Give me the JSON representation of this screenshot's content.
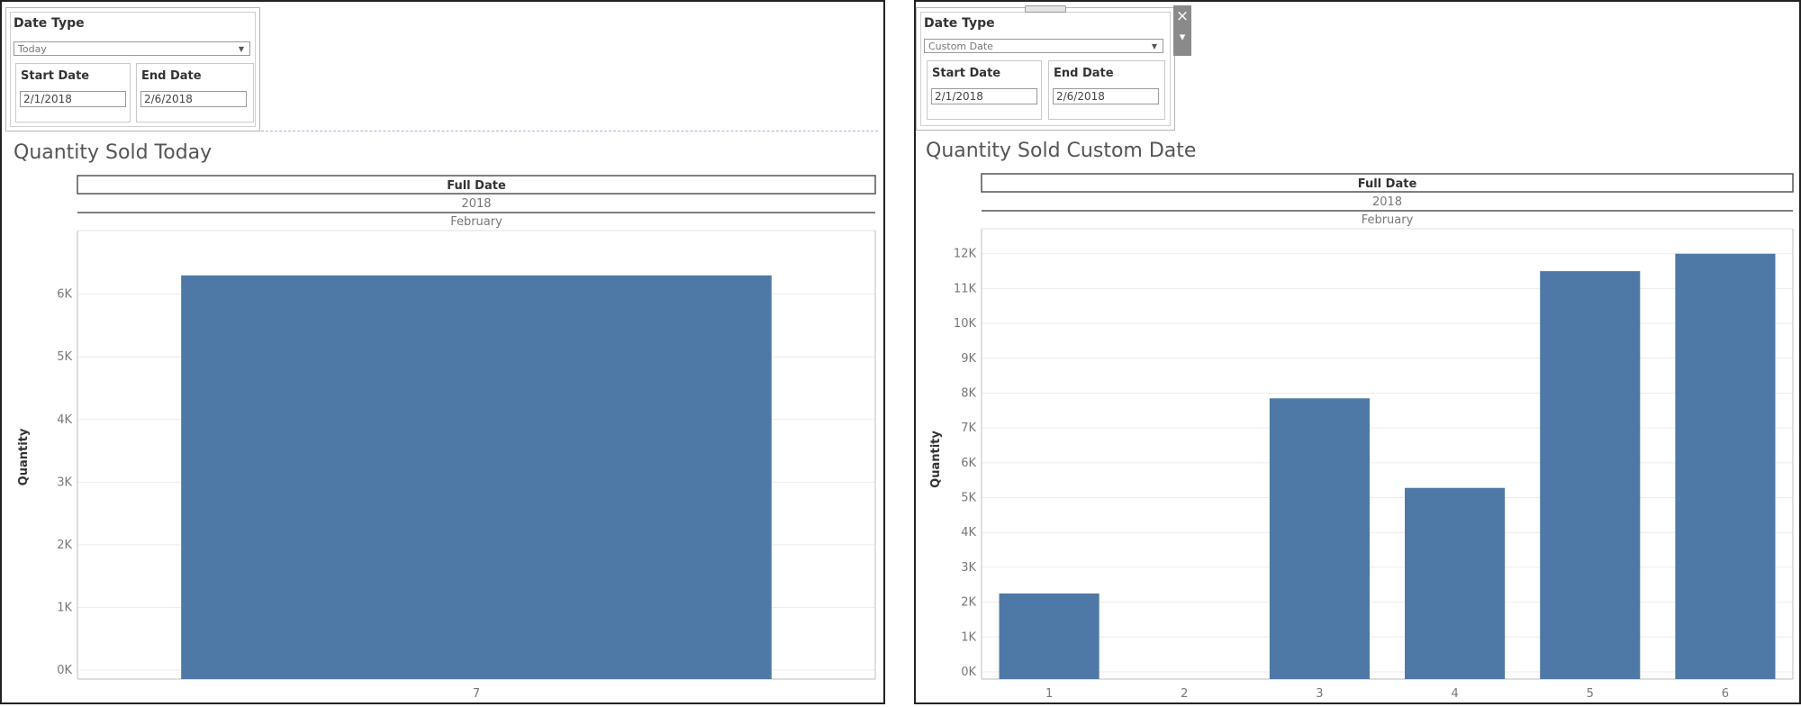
{
  "left": {
    "filter": {
      "title": "Date Type",
      "selected": "Today",
      "start_label": "Start Date",
      "start_value": "2/1/2018",
      "end_label": "End Date",
      "end_value": "2/6/2018"
    },
    "chart_title": "Quantity Sold Today"
  },
  "right": {
    "filter": {
      "title": "Date Type",
      "selected": "Custom Date",
      "start_label": "Start Date",
      "start_value": "2/1/2018",
      "end_label": "End Date",
      "end_value": "2/6/2018"
    },
    "chart_title": "Quantity Sold Custom Date",
    "tools": {
      "close_icon": "×",
      "menu_icon": "▾"
    }
  },
  "colors": {
    "bar": "#4e79a7",
    "grid": "#ececec",
    "axis": "#bdbdbd"
  },
  "chart_data": [
    {
      "type": "bar",
      "title": "Quantity Sold Today",
      "header": [
        "Full Date",
        "2018",
        "February"
      ],
      "categories": [
        "7"
      ],
      "values": [
        6300
      ],
      "ylabel": "Quantity",
      "ylim": [
        0,
        6800
      ],
      "yticks": [
        0,
        1000,
        2000,
        3000,
        4000,
        5000,
        6000
      ],
      "ytick_labels": [
        "0K",
        "1K",
        "2K",
        "3K",
        "4K",
        "5K",
        "6K"
      ],
      "grid": true
    },
    {
      "type": "bar",
      "title": "Quantity Sold Custom Date",
      "header": [
        "Full Date",
        "2018",
        "February"
      ],
      "categories": [
        "1",
        "2",
        "3",
        "4",
        "5",
        "6"
      ],
      "values": [
        2250,
        0,
        7850,
        5280,
        11500,
        12000
      ],
      "ylabel": "Quantity",
      "ylim": [
        0,
        12200
      ],
      "yticks": [
        0,
        1000,
        2000,
        3000,
        4000,
        5000,
        6000,
        7000,
        8000,
        9000,
        10000,
        11000,
        12000
      ],
      "ytick_labels": [
        "0K",
        "1K",
        "2K",
        "3K",
        "4K",
        "5K",
        "6K",
        "7K",
        "8K",
        "9K",
        "10K",
        "11K",
        "12K"
      ],
      "grid": true
    }
  ]
}
